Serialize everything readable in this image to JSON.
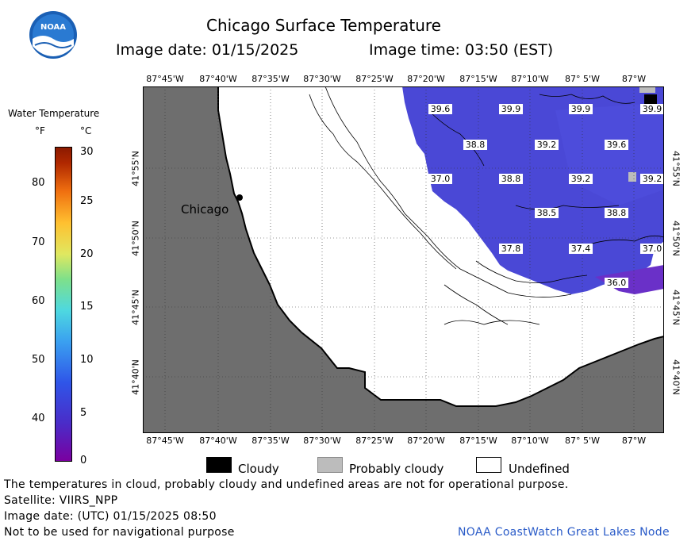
{
  "header": {
    "title": "Chicago Surface Temperature",
    "image_date": "Image date: 01/15/2025",
    "image_time": "Image time: 03:50 (EST)",
    "logo_text": "NOAA"
  },
  "legend": {
    "title": "Water Temperature",
    "unit_f": "°F",
    "unit_c": "°C",
    "f_ticks": [
      "80",
      "70",
      "60",
      "50",
      "40"
    ],
    "c_ticks": [
      "30",
      "25",
      "20",
      "15",
      "10",
      "5",
      "0"
    ]
  },
  "map": {
    "lon_labels": [
      "87°45'W",
      "87°40'W",
      "87°35'W",
      "87°30'W",
      "87°25'W",
      "87°20'W",
      "87°15'W",
      "87°10'W",
      "87° 5'W",
      "87°W"
    ],
    "lat_labels": [
      "41°55'N",
      "41°50'N",
      "41°45'N",
      "41°40'N"
    ],
    "city_label": "Chicago",
    "temps": [
      "39.6",
      "39.9",
      "39.9",
      "39.9",
      "38.8",
      "39.2",
      "39.6",
      "37.0",
      "38.8",
      "39.2",
      "39.2",
      "38.5",
      "38.8",
      "37.8",
      "37.4",
      "37.0",
      "36.0"
    ],
    "colors": {
      "land": "#6e6e6e",
      "water": "#4a4ad8",
      "undefined": "#ffffff"
    }
  },
  "key": {
    "cloudy": "Cloudy",
    "probably_cloudy": "Probably cloudy",
    "undefined": "Undefined"
  },
  "footer": {
    "disclaimer": "The temperatures in cloud, probably cloudy and undefined areas are not for operational purpose.",
    "satellite": "Satellite: VIIRS_NPP",
    "utc_date": "Image date: (UTC) 01/15/2025  08:50",
    "nav_warning": "Not to be used for navigational purpose",
    "credit": "NOAA CoastWatch Great Lakes Node"
  }
}
